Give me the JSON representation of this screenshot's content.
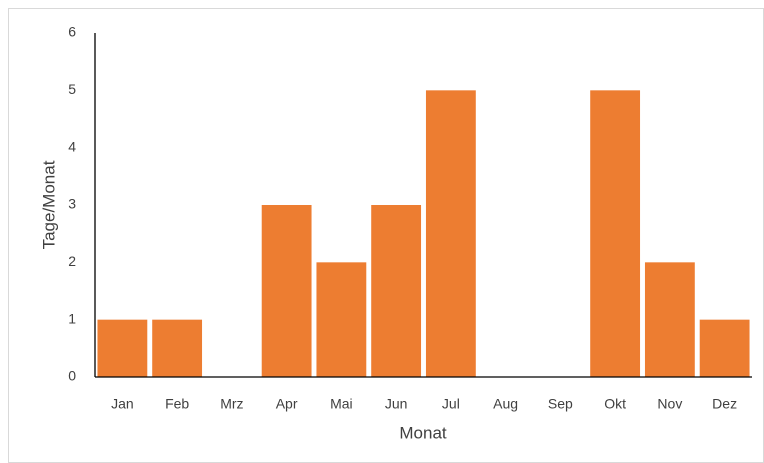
{
  "chart_data": {
    "type": "bar",
    "x_label": "Monat",
    "y_label": "Tage/Monat",
    "categories": [
      "Jan",
      "Feb",
      "Mrz",
      "Apr",
      "Mai",
      "Jun",
      "Jul",
      "Aug",
      "Sep",
      "Okt",
      "Nov",
      "Dez"
    ],
    "values": [
      1,
      1,
      0,
      3,
      2,
      3,
      5,
      0,
      0,
      5,
      2,
      1
    ],
    "color": "#ed7d31",
    "ylim": [
      0,
      6
    ],
    "yticks": [
      0,
      1,
      2,
      3,
      4,
      5,
      6
    ],
    "grid": false
  }
}
